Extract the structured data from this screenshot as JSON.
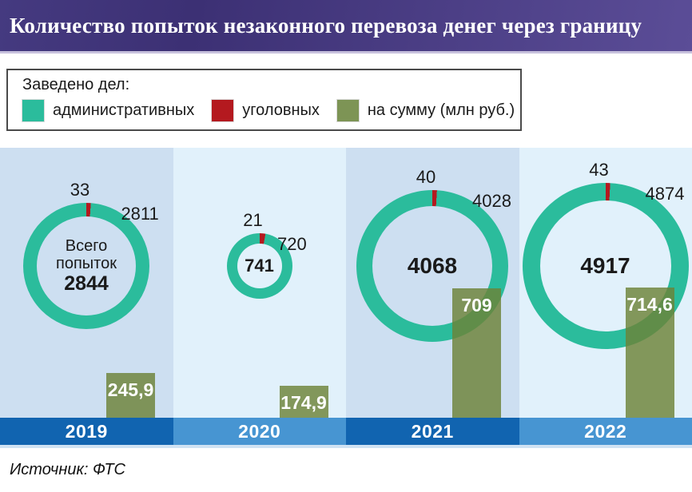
{
  "title": "Количество попыток незаконного перевоза денег через границу",
  "legend": {
    "heading": "Заведено дел:",
    "items": [
      {
        "id": "administrative",
        "label": "административных",
        "color": "#2bbc9c"
      },
      {
        "id": "criminal",
        "label": "уголовных",
        "color": "#b4191f"
      },
      {
        "id": "sum",
        "label": "на сумму (млн руб.)",
        "color": "#7d9455"
      }
    ]
  },
  "source": "Источник: ФТС",
  "colors": {
    "administrative": "#2bbc9c",
    "criminal": "#b4191f",
    "sum_bar_solid": "#7d9455",
    "sum_bar_rgba": "rgba(109,130,55,0.82)",
    "band_dark": "#1164b0",
    "band_light": "#4795d2",
    "panel_bg_dark": "#cddff1",
    "panel_bg_light": "#e1f1fb",
    "band_underline": "#cfe2f3",
    "title_bg_left": "#3c3074",
    "title_bg_right": "#5b4d97"
  },
  "chart_data": {
    "type": "donut",
    "title": "Количество попыток незаконного перевоза денег через границу",
    "subtitle": "Заведено дел:",
    "categories": [
      "2019",
      "2020",
      "2021",
      "2022"
    ],
    "series": [
      {
        "name": "административных",
        "values": [
          2811,
          720,
          4028,
          4874
        ]
      },
      {
        "name": "уголовных",
        "values": [
          33,
          21,
          40,
          43
        ]
      },
      {
        "name": "Всего попыток",
        "values": [
          2844,
          741,
          4068,
          4917
        ]
      },
      {
        "name": "на сумму (млн руб.)",
        "values": [
          245.9,
          174.9,
          709,
          714.6
        ]
      }
    ],
    "legend_position": "top",
    "grid": false,
    "panels": [
      {
        "year": "2019",
        "administrative": 2811,
        "criminal": 33,
        "total": 2844,
        "center_caption": "Всего попыток",
        "total_display": "2844",
        "sum_mln_rub": 245.9,
        "sum_display": "245,9",
        "band_shade": "dark",
        "bg_shade": "dark"
      },
      {
        "year": "2020",
        "administrative": 720,
        "criminal": 21,
        "total": 741,
        "center_caption": "",
        "total_display": "741",
        "sum_mln_rub": 174.9,
        "sum_display": "174,9",
        "band_shade": "light",
        "bg_shade": "light"
      },
      {
        "year": "2021",
        "administrative": 4028,
        "criminal": 40,
        "total": 4068,
        "center_caption": "",
        "total_display": "4068",
        "sum_mln_rub": 709,
        "sum_display": "709",
        "band_shade": "dark",
        "bg_shade": "dark"
      },
      {
        "year": "2022",
        "administrative": 4874,
        "criminal": 43,
        "total": 4917,
        "center_caption": "",
        "total_display": "4917",
        "sum_mln_rub": 714.6,
        "sum_display": "714,6",
        "band_shade": "light",
        "bg_shade": "light"
      }
    ]
  }
}
